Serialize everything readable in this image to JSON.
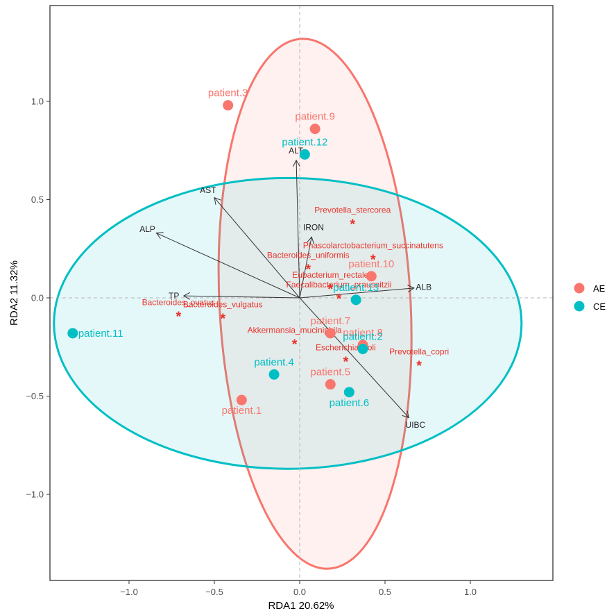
{
  "chart_data": {
    "type": "scatter",
    "title": "",
    "xlabel": "RDA1 20.62%",
    "ylabel": "RDA2 11.32%",
    "xlim": [
      -1.45,
      1.48
    ],
    "ylim": [
      -1.45,
      1.48
    ],
    "xticks": [
      -1.0,
      -0.5,
      0.0,
      0.5,
      1.0
    ],
    "xtick_labels": [
      "−1.0",
      "−0.5",
      "0.0",
      "0.5",
      "1.0"
    ],
    "yticks": [
      -1.0,
      -0.5,
      0.0,
      0.5,
      1.0
    ],
    "ytick_labels": [
      "−1.0",
      "−0.5",
      "0.0",
      "0.5",
      "1.0"
    ],
    "grid": false,
    "legend": {
      "position": "right",
      "entries": [
        "AE",
        "CE"
      ]
    },
    "colors": {
      "AE": "#F8766D",
      "CE": "#00BFC4",
      "species_label": "#E8332A",
      "arrow": "#333333"
    },
    "series": [
      {
        "name": "AE",
        "points": [
          {
            "label": "patient.3",
            "x": -0.42,
            "y": 0.98
          },
          {
            "label": "patient.9",
            "x": 0.09,
            "y": 0.86
          },
          {
            "label": "patient.10",
            "x": 0.42,
            "y": 0.11
          },
          {
            "label": "patient.7",
            "x": 0.18,
            "y": -0.18
          },
          {
            "label": "patient.8",
            "x": 0.37,
            "y": -0.24
          },
          {
            "label": "patient.5",
            "x": 0.18,
            "y": -0.44
          },
          {
            "label": "patient.1",
            "x": -0.34,
            "y": -0.52
          }
        ]
      },
      {
        "name": "CE",
        "points": [
          {
            "label": "patient.12",
            "x": 0.03,
            "y": 0.73
          },
          {
            "label": "patient.13",
            "x": 0.33,
            "y": -0.01
          },
          {
            "label": "patient.2",
            "x": 0.37,
            "y": -0.26
          },
          {
            "label": "patient.4",
            "x": -0.15,
            "y": -0.39
          },
          {
            "label": "patient.6",
            "x": 0.29,
            "y": -0.48
          },
          {
            "label": "patient.11",
            "x": -1.33,
            "y": -0.18
          }
        ]
      }
    ],
    "ellipses": [
      {
        "group": "AE",
        "cx": 0.09,
        "cy": -0.03,
        "semi_x": 0.56,
        "semi_y": 1.35,
        "tilt_deg": -3
      },
      {
        "group": "CE",
        "cx": -0.07,
        "cy": -0.13,
        "semi_x": 1.37,
        "semi_y": 0.74,
        "tilt_deg": 0
      }
    ],
    "arrows": [
      {
        "label": "ALT",
        "x": -0.02,
        "y": 0.7
      },
      {
        "label": "AST",
        "x": -0.5,
        "y": 0.51
      },
      {
        "label": "ALP",
        "x": -0.84,
        "y": 0.33
      },
      {
        "label": "IRON",
        "x": 0.07,
        "y": 0.31
      },
      {
        "label": "ALB",
        "x": 0.67,
        "y": 0.05
      },
      {
        "label": "TP",
        "x": -0.68,
        "y": 0.01
      },
      {
        "label": "UIBC",
        "x": 0.64,
        "y": -0.61
      }
    ],
    "species": [
      {
        "label": "Prevotella_stercorea",
        "x": 0.31,
        "y": 0.39
      },
      {
        "label": "Phascolarctobacterium_succinatutens",
        "x": 0.43,
        "y": 0.21
      },
      {
        "label": "Bacteroides_uniformis",
        "x": 0.05,
        "y": 0.16
      },
      {
        "label": "Eubacterium_rectale",
        "x": 0.18,
        "y": 0.06
      },
      {
        "label": "Faecalibacterium_prausnitzii",
        "x": 0.23,
        "y": 0.01
      },
      {
        "label": "Bacteroides_ovatus",
        "x": -0.71,
        "y": -0.08
      },
      {
        "label": "Bacteroides_vulgatus",
        "x": -0.45,
        "y": -0.09
      },
      {
        "label": "Akkermansia_muciniphila",
        "x": -0.03,
        "y": -0.22
      },
      {
        "label": "Escherichia_coli",
        "x": 0.27,
        "y": -0.31
      },
      {
        "label": "Prevotella_copri",
        "x": 0.7,
        "y": -0.33
      }
    ]
  }
}
